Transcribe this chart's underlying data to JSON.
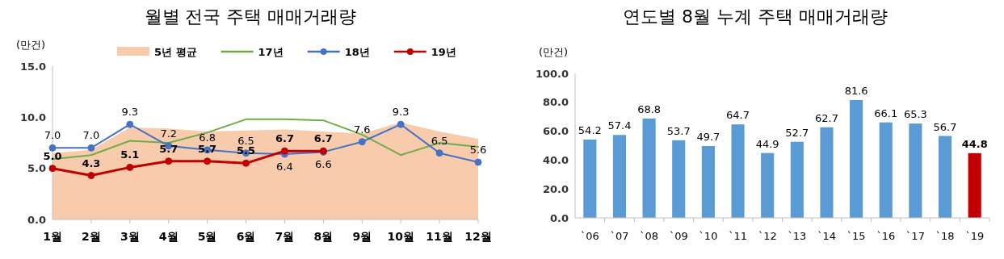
{
  "chart_data": [
    {
      "type": "line",
      "title": "월별 전국 주택 매매거래량",
      "ylabel": "(만건)",
      "categories": [
        "1월",
        "2월",
        "3월",
        "4월",
        "5월",
        "6월",
        "7월",
        "8월",
        "9월",
        "10월",
        "11월",
        "12월"
      ],
      "ylim": [
        0,
        15
      ],
      "yticks": [
        {
          "value": 0,
          "label": "0.0"
        },
        {
          "value": 5,
          "label": "5.0"
        },
        {
          "value": 10,
          "label": "10.0"
        },
        {
          "value": 15,
          "label": "15.0"
        }
      ],
      "legend": "top",
      "grid": false,
      "series": [
        {
          "name": "5년 평균",
          "type": "area",
          "color": "#f8cbad",
          "values": [
            6.5,
            6.8,
            9.0,
            8.9,
            8.6,
            8.7,
            8.8,
            8.6,
            8.4,
            9.5,
            8.6,
            7.9
          ]
        },
        {
          "name": "17년",
          "type": "line",
          "color": "#70ad47",
          "marker": "none",
          "values": [
            5.9,
            6.3,
            7.7,
            7.5,
            8.5,
            9.8,
            9.8,
            9.7,
            8.3,
            6.3,
            7.5,
            7.1
          ]
        },
        {
          "name": "18년",
          "type": "line",
          "color": "#4472c4",
          "marker": "circle",
          "values": [
            7.0,
            7.0,
            9.3,
            7.2,
            6.8,
            6.5,
            6.4,
            6.6,
            7.6,
            9.3,
            6.5,
            5.6
          ],
          "value_labels": [
            "7.0",
            "7.0",
            "9.3",
            "7.2",
            "6.8",
            "6.5",
            "6.4",
            "6.6",
            "7.6",
            "9.3",
            "6.5",
            "5.6"
          ]
        },
        {
          "name": "19년",
          "type": "line",
          "color": "#c00000",
          "marker": "circle",
          "values": [
            5.0,
            4.3,
            5.1,
            5.7,
            5.7,
            5.5,
            6.7,
            6.7,
            null,
            null,
            null,
            null
          ],
          "value_labels": [
            "5.0",
            "4.3",
            "5.1",
            "5.7",
            "5.7",
            "5.5",
            "6.7",
            "6.7",
            null,
            null,
            null,
            null
          ]
        }
      ]
    },
    {
      "type": "bar",
      "title": "연도별 8월 누계 주택 매매거래량",
      "ylabel": "(만건)",
      "categories": [
        "`06",
        "`07",
        "`08",
        "`09",
        "`10",
        "`11",
        "`12",
        "`13",
        "`14",
        "`15",
        "`16",
        "`17",
        "`18",
        "`19"
      ],
      "ylim": [
        0,
        100
      ],
      "yticks": [
        {
          "value": 0,
          "label": "0.0"
        },
        {
          "value": 20,
          "label": "20.0"
        },
        {
          "value": 40,
          "label": "40.0"
        },
        {
          "value": 60,
          "label": "60.0"
        },
        {
          "value": 80,
          "label": "80.0"
        },
        {
          "value": 100,
          "label": "100.0"
        }
      ],
      "grid": false,
      "data_labels": true,
      "values": [
        54.2,
        57.4,
        68.8,
        53.7,
        49.7,
        64.7,
        44.9,
        52.7,
        62.7,
        81.6,
        66.1,
        65.3,
        56.7,
        44.8
      ],
      "colors": [
        "#5b9bd5",
        "#5b9bd5",
        "#5b9bd5",
        "#5b9bd5",
        "#5b9bd5",
        "#5b9bd5",
        "#5b9bd5",
        "#5b9bd5",
        "#5b9bd5",
        "#5b9bd5",
        "#5b9bd5",
        "#5b9bd5",
        "#5b9bd5",
        "#c00000"
      ]
    }
  ]
}
